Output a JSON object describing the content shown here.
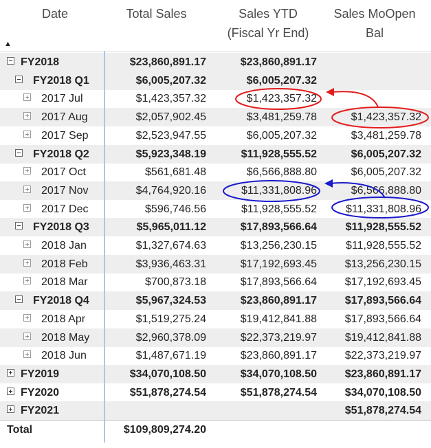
{
  "headers": {
    "date": "Date",
    "total_sales": "Total Sales",
    "sales_ytd": [
      "Sales YTD",
      "(Fiscal Yr End)"
    ],
    "sales_mo_open": [
      "Sales MoOpen",
      "Bal"
    ]
  },
  "rows": [
    {
      "label": "FY2018",
      "level": 0,
      "toggle": "minus",
      "bold": true,
      "band": true,
      "total": "$23,860,891.17",
      "ytd": "$23,860,891.17",
      "mo": ""
    },
    {
      "label": "FY2018 Q1",
      "level": 1,
      "toggle": "minus",
      "bold": true,
      "band": true,
      "total": "$6,005,207.32",
      "ytd": "$6,005,207.32",
      "mo": ""
    },
    {
      "label": "2017 Jul",
      "level": 2,
      "toggle": "leaf",
      "bold": false,
      "band": false,
      "total": "$1,423,357.32",
      "ytd": "$1,423,357.32",
      "mo": ""
    },
    {
      "label": "2017 Aug",
      "level": 2,
      "toggle": "leaf",
      "bold": false,
      "band": true,
      "total": "$2,057,902.45",
      "ytd": "$3,481,259.78",
      "mo": "$1,423,357.32"
    },
    {
      "label": "2017 Sep",
      "level": 2,
      "toggle": "leaf",
      "bold": false,
      "band": false,
      "total": "$2,523,947.55",
      "ytd": "$6,005,207.32",
      "mo": "$3,481,259.78"
    },
    {
      "label": "FY2018 Q2",
      "level": 1,
      "toggle": "minus",
      "bold": true,
      "band": true,
      "total": "$5,923,348.19",
      "ytd": "$11,928,555.52",
      "mo": "$6,005,207.32"
    },
    {
      "label": "2017 Oct",
      "level": 2,
      "toggle": "leaf",
      "bold": false,
      "band": false,
      "total": "$561,681.48",
      "ytd": "$6,566,888.80",
      "mo": "$6,005,207.32"
    },
    {
      "label": "2017 Nov",
      "level": 2,
      "toggle": "leaf",
      "bold": false,
      "band": true,
      "total": "$4,764,920.16",
      "ytd": "$11,331,808.96",
      "mo": "$6,566,888.80"
    },
    {
      "label": "2017 Dec",
      "level": 2,
      "toggle": "leaf",
      "bold": false,
      "band": false,
      "total": "$596,746.56",
      "ytd": "$11,928,555.52",
      "mo": "$11,331,808.96"
    },
    {
      "label": "FY2018 Q3",
      "level": 1,
      "toggle": "minus",
      "bold": true,
      "band": true,
      "total": "$5,965,011.12",
      "ytd": "$17,893,566.64",
      "mo": "$11,928,555.52"
    },
    {
      "label": "2018 Jan",
      "level": 2,
      "toggle": "leaf",
      "bold": false,
      "band": false,
      "total": "$1,327,674.63",
      "ytd": "$13,256,230.15",
      "mo": "$11,928,555.52"
    },
    {
      "label": "2018 Feb",
      "level": 2,
      "toggle": "leaf",
      "bold": false,
      "band": true,
      "total": "$3,936,463.31",
      "ytd": "$17,192,693.45",
      "mo": "$13,256,230.15"
    },
    {
      "label": "2018 Mar",
      "level": 2,
      "toggle": "leaf",
      "bold": false,
      "band": false,
      "total": "$700,873.18",
      "ytd": "$17,893,566.64",
      "mo": "$17,192,693.45"
    },
    {
      "label": "FY2018 Q4",
      "level": 1,
      "toggle": "minus",
      "bold": true,
      "band": true,
      "total": "$5,967,324.53",
      "ytd": "$23,860,891.17",
      "mo": "$17,893,566.64"
    },
    {
      "label": "2018 Apr",
      "level": 2,
      "toggle": "leaf",
      "bold": false,
      "band": false,
      "total": "$1,519,275.24",
      "ytd": "$19,412,841.88",
      "mo": "$17,893,566.64"
    },
    {
      "label": "2018 May",
      "level": 2,
      "toggle": "leaf",
      "bold": false,
      "band": true,
      "total": "$2,960,378.09",
      "ytd": "$22,373,219.97",
      "mo": "$19,412,841.88"
    },
    {
      "label": "2018 Jun",
      "level": 2,
      "toggle": "leaf",
      "bold": false,
      "band": false,
      "total": "$1,487,671.19",
      "ytd": "$23,860,891.17",
      "mo": "$22,373,219.97"
    },
    {
      "label": "FY2019",
      "level": 0,
      "toggle": "plus",
      "bold": true,
      "band": true,
      "total": "$34,070,108.50",
      "ytd": "$34,070,108.50",
      "mo": "$23,860,891.17"
    },
    {
      "label": "FY2020",
      "level": 0,
      "toggle": "plus",
      "bold": true,
      "band": false,
      "total": "$51,878,274.54",
      "ytd": "$51,878,274.54",
      "mo": "$34,070,108.50"
    },
    {
      "label": "FY2021",
      "level": 0,
      "toggle": "plus",
      "bold": true,
      "band": true,
      "total": "",
      "ytd": "",
      "mo": "$51,878,274.54"
    },
    {
      "label": "Total",
      "level": -1,
      "toggle": "none",
      "bold": true,
      "band": false,
      "total": "$109,809,274.20",
      "ytd": "",
      "mo": ""
    }
  ],
  "annotation_colors": {
    "red": "#e31c1c",
    "blue": "#1a1acc"
  }
}
